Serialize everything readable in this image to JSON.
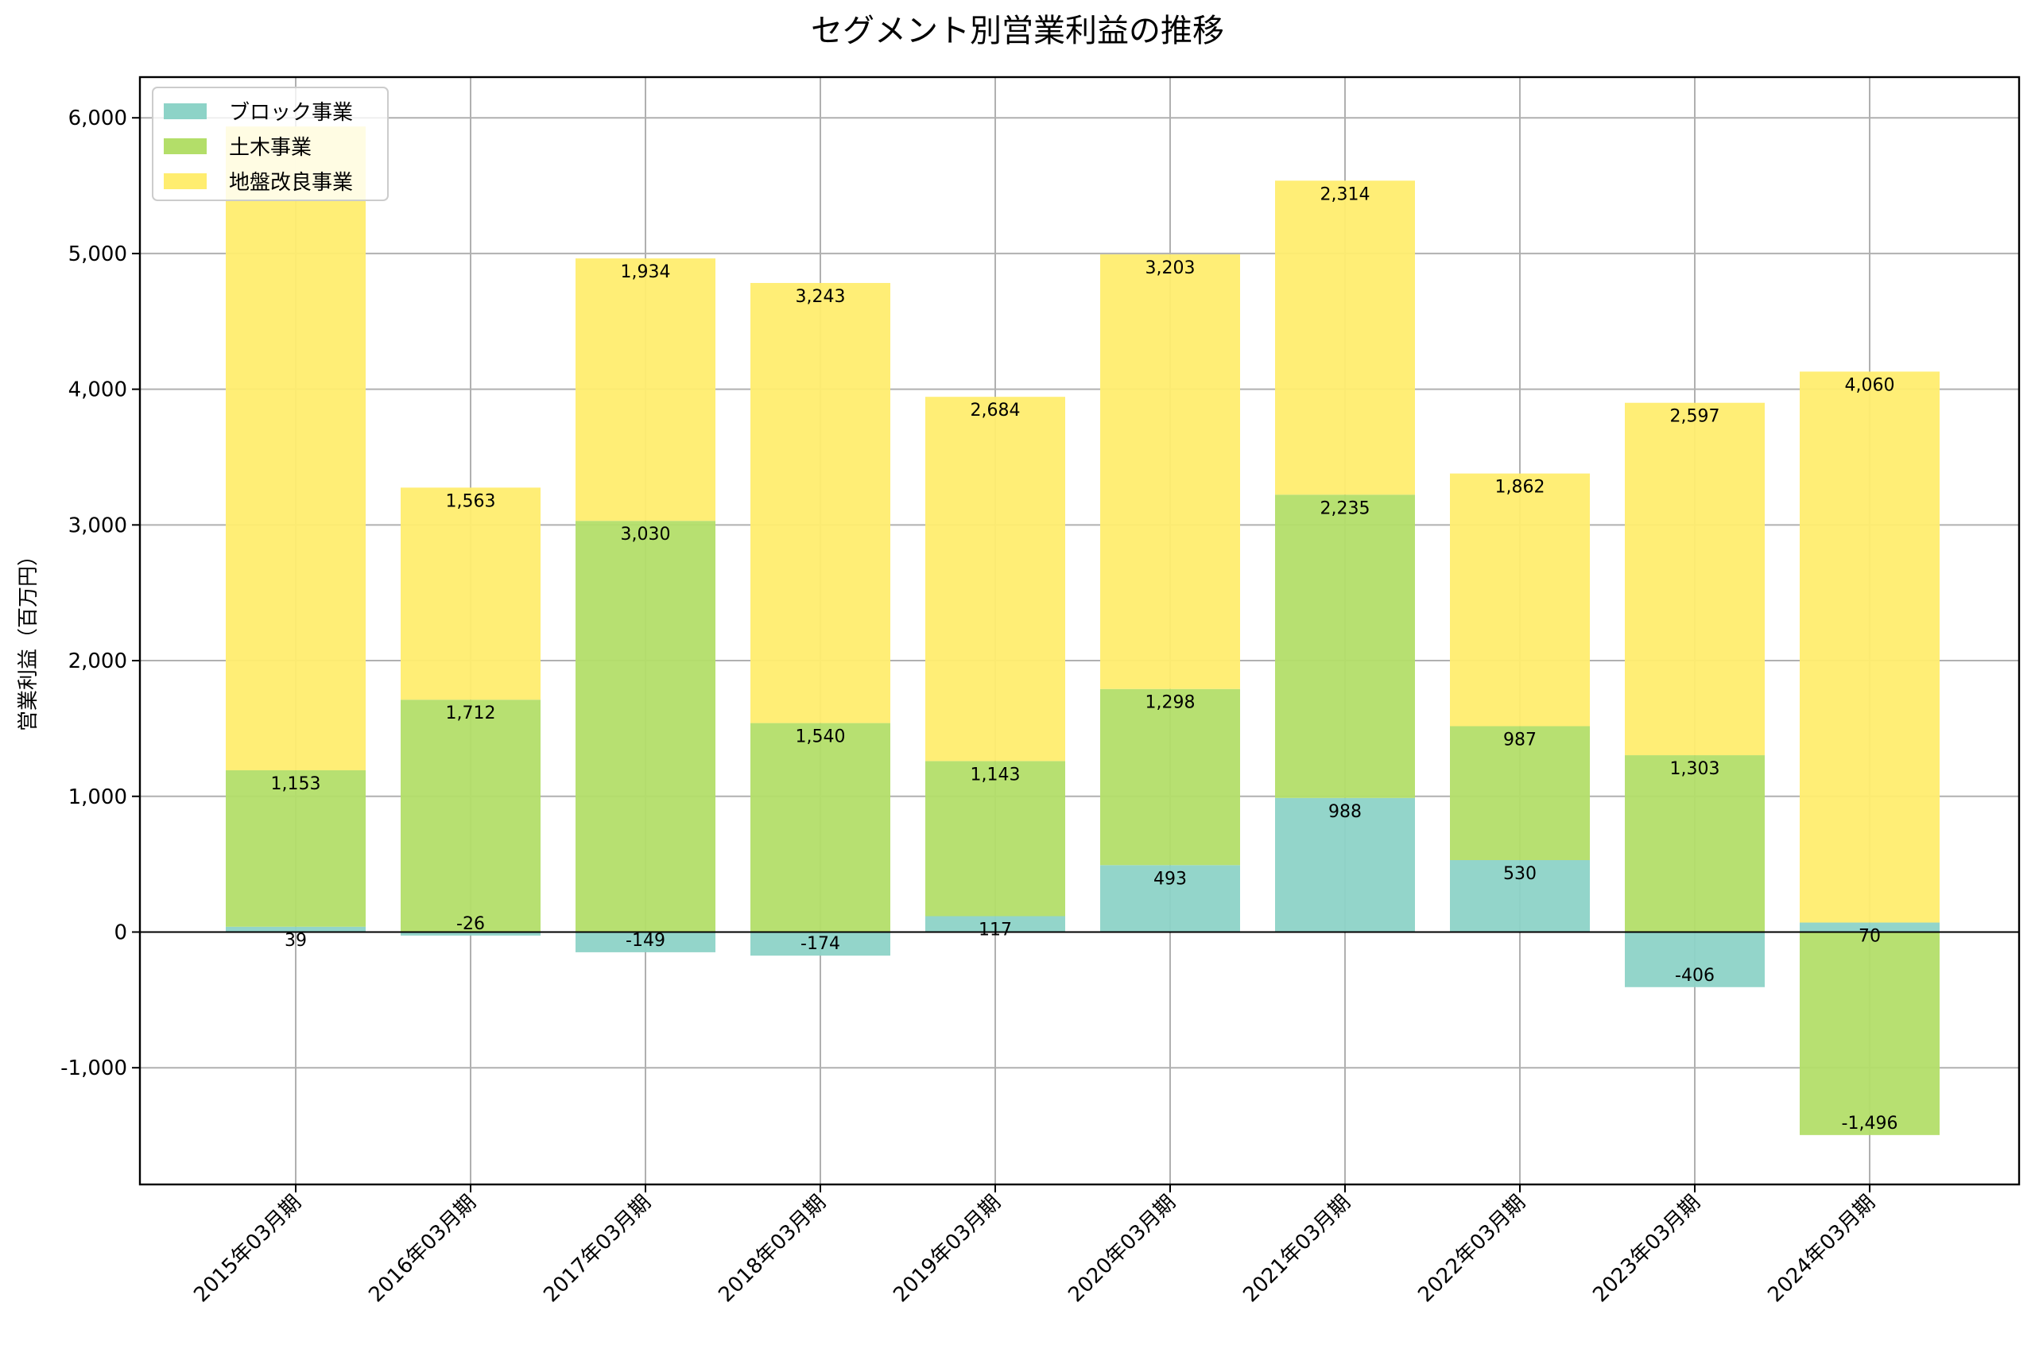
{
  "chart_data": {
    "type": "bar",
    "stacked": true,
    "title": "セグメント別営業利益の推移",
    "xlabel": "",
    "ylabel": "営業利益（百万円）",
    "ylim": [
      -1860,
      6300
    ],
    "yticks": [
      -1000,
      0,
      1000,
      2000,
      3000,
      4000,
      5000,
      6000
    ],
    "ytick_labels": [
      "-1,000",
      "0",
      "1,000",
      "2,000",
      "3,000",
      "4,000",
      "5,000",
      "6,000"
    ],
    "grid": true,
    "legend_position": "top-left",
    "categories": [
      "2015年03月期",
      "2016年03月期",
      "2017年03月期",
      "2018年03月期",
      "2019年03月期",
      "2020年03月期",
      "2021年03月期",
      "2022年03月期",
      "2023年03月期",
      "2024年03月期"
    ],
    "series": [
      {
        "name": "ブロック事業",
        "color": "#8dd3c7",
        "values": [
          39,
          -26,
          -149,
          -174,
          117,
          493,
          988,
          530,
          -406,
          70
        ],
        "labels": [
          "39",
          "-26",
          "-149",
          "-174",
          "117",
          "493",
          "988",
          "530",
          "-406",
          "70"
        ]
      },
      {
        "name": "土木事業",
        "color": "#b3de69",
        "values": [
          1153,
          1712,
          3030,
          1540,
          1143,
          1298,
          2235,
          987,
          1303,
          -1496
        ],
        "labels": [
          "1,153",
          "1,712",
          "3,030",
          "1,540",
          "1,143",
          "1,298",
          "2,235",
          "987",
          "1,303",
          "-1,496"
        ]
      },
      {
        "name": "地盤改良事業",
        "color": "#ffed6f",
        "values": [
          4744,
          1563,
          1934,
          3243,
          2684,
          3203,
          2314,
          1862,
          2597,
          4060
        ],
        "labels": [
          "",
          "1,563",
          "1,934",
          "3,243",
          "2,684",
          "3,203",
          "2,314",
          "1,862",
          "2,597",
          "4,060"
        ]
      }
    ]
  }
}
